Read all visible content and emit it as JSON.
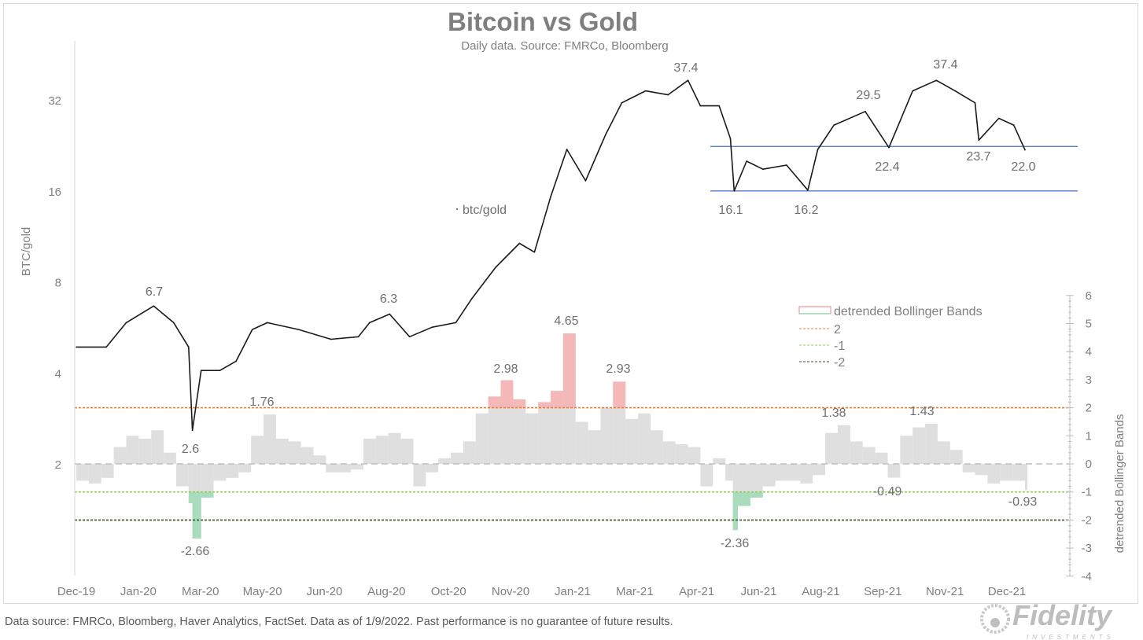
{
  "chart_data": [
    {
      "type": "line",
      "title": "Bitcoin vs Gold",
      "subtitle": "Daily data.  Source: FMRCo, Bloomberg",
      "ylabel": "BTC/gold",
      "yscale": "log2",
      "yticks": [
        2,
        4,
        8,
        16,
        32
      ],
      "ylim": [
        1.6,
        48
      ],
      "xlim": [
        "2019-12-11",
        "2022-01-09"
      ],
      "xtick_labels": [
        "Dec-19",
        "Jan-20",
        "Mar-20",
        "May-20",
        "Jun-20",
        "Aug-20",
        "Oct-20",
        "Nov-20",
        "Jan-21",
        "Mar-21",
        "Apr-21",
        "Jun-21",
        "Aug-21",
        "Sep-21",
        "Nov-21",
        "Dec-21"
      ],
      "series_label": "btc/gold",
      "color": "#1a1a1a",
      "points": [
        [
          "2019-12-11",
          4.9
        ],
        [
          "2020-01-04",
          4.9
        ],
        [
          "2020-01-20",
          5.9
        ],
        [
          "2020-02-11",
          6.7
        ],
        [
          "2020-02-27",
          5.9
        ],
        [
          "2020-03-10",
          4.9
        ],
        [
          "2020-03-13",
          2.6
        ],
        [
          "2020-03-20",
          4.1
        ],
        [
          "2020-04-04",
          4.1
        ],
        [
          "2020-04-17",
          4.4
        ],
        [
          "2020-04-30",
          5.6
        ],
        [
          "2020-05-12",
          5.9
        ],
        [
          "2020-06-06",
          5.6
        ],
        [
          "2020-07-02",
          5.2
        ],
        [
          "2020-07-24",
          5.3
        ],
        [
          "2020-08-02",
          5.9
        ],
        [
          "2020-08-18",
          6.3
        ],
        [
          "2020-09-03",
          5.3
        ],
        [
          "2020-09-21",
          5.7
        ],
        [
          "2020-10-10",
          5.9
        ],
        [
          "2020-10-23",
          7.1
        ],
        [
          "2020-11-11",
          9.0
        ],
        [
          "2020-11-30",
          10.8
        ],
        [
          "2020-12-12",
          10.1
        ],
        [
          "2020-12-25",
          15.4
        ],
        [
          "2021-01-07",
          22.1
        ],
        [
          "2021-01-22",
          17.4
        ],
        [
          "2021-02-07",
          24.7
        ],
        [
          "2021-02-20",
          31.5
        ],
        [
          "2021-03-11",
          34.5
        ],
        [
          "2021-03-29",
          33.5
        ],
        [
          "2021-04-14",
          37.4
        ],
        [
          "2021-04-24",
          30.8
        ],
        [
          "2021-05-09",
          30.8
        ],
        [
          "2021-05-18",
          24.0
        ],
        [
          "2021-05-21",
          16.1
        ],
        [
          "2021-05-31",
          20.2
        ],
        [
          "2021-06-13",
          19.0
        ],
        [
          "2021-07-02",
          19.6
        ],
        [
          "2021-07-19",
          16.2
        ],
        [
          "2021-07-27",
          22.1
        ],
        [
          "2021-08-09",
          26.6
        ],
        [
          "2021-09-03",
          29.5
        ],
        [
          "2021-09-22",
          22.4
        ],
        [
          "2021-10-11",
          34.5
        ],
        [
          "2021-10-30",
          37.4
        ],
        [
          "2021-11-14",
          34.5
        ],
        [
          "2021-11-30",
          31.5
        ],
        [
          "2021-12-03",
          23.7
        ],
        [
          "2021-12-19",
          28.0
        ],
        [
          "2021-12-31",
          26.6
        ],
        [
          "2022-01-09",
          22.0
        ]
      ],
      "annotations": [
        "6.7",
        "2.6",
        "6.3",
        "37.4",
        "16.1",
        "16.2",
        "29.5",
        "37.4",
        "22.4",
        "23.7",
        "22.0"
      ],
      "support_lines": [
        16.1,
        22.6
      ],
      "support_line_color": "#4472c4"
    },
    {
      "type": "bar",
      "ylabel": "detrended Bollinger Bands",
      "ylim": [
        -4,
        6
      ],
      "yticks": [
        -4,
        -3,
        -2,
        -1,
        0,
        1,
        2,
        3,
        4,
        5,
        6
      ],
      "legend": {
        "position": "right",
        "entries": [
          "detrended Bollinger Bands",
          "2",
          "-1",
          "-2"
        ]
      },
      "colors": {
        "bar": "#d9d9d9",
        "above_2": "#f4b8b8",
        "below_minus_1": "#a9dcbc",
        "line_2": "#ed7d31",
        "line_minus_1": "#92d050",
        "line_minus_2": "#375623",
        "zero": "#bfbfbf"
      },
      "reference_lines": [
        2,
        -1,
        -2,
        0
      ],
      "points": [
        [
          "2019-12-11",
          -0.6
        ],
        [
          "2019-12-21",
          -0.7
        ],
        [
          "2019-12-31",
          -0.5
        ],
        [
          "2020-01-10",
          0.6
        ],
        [
          "2020-01-20",
          1.0
        ],
        [
          "2020-01-30",
          0.9
        ],
        [
          "2020-02-09",
          1.2
        ],
        [
          "2020-02-19",
          0.4
        ],
        [
          "2020-02-29",
          -0.8
        ],
        [
          "2020-03-10",
          -1.4
        ],
        [
          "2020-03-13",
          -2.66
        ],
        [
          "2020-03-20",
          -1.2
        ],
        [
          "2020-03-30",
          -0.6
        ],
        [
          "2020-04-09",
          -0.5
        ],
        [
          "2020-04-19",
          -0.3
        ],
        [
          "2020-04-29",
          1.0
        ],
        [
          "2020-05-09",
          1.76
        ],
        [
          "2020-05-19",
          0.9
        ],
        [
          "2020-05-29",
          0.8
        ],
        [
          "2020-06-08",
          0.6
        ],
        [
          "2020-06-18",
          0.3
        ],
        [
          "2020-06-28",
          -0.3
        ],
        [
          "2020-07-08",
          -0.3
        ],
        [
          "2020-07-18",
          -0.2
        ],
        [
          "2020-07-28",
          0.9
        ],
        [
          "2020-08-07",
          1.0
        ],
        [
          "2020-08-17",
          1.1
        ],
        [
          "2020-08-27",
          0.9
        ],
        [
          "2020-09-06",
          -0.8
        ],
        [
          "2020-09-16",
          -0.3
        ],
        [
          "2020-09-26",
          0.2
        ],
        [
          "2020-10-06",
          0.4
        ],
        [
          "2020-10-16",
          0.8
        ],
        [
          "2020-10-26",
          1.8
        ],
        [
          "2020-11-05",
          2.4
        ],
        [
          "2020-11-15",
          2.98
        ],
        [
          "2020-11-25",
          2.3
        ],
        [
          "2020-12-05",
          1.8
        ],
        [
          "2020-12-15",
          2.2
        ],
        [
          "2020-12-25",
          2.6
        ],
        [
          "2021-01-04",
          4.65
        ],
        [
          "2021-01-14",
          1.5
        ],
        [
          "2021-01-24",
          1.2
        ],
        [
          "2021-02-03",
          2.0
        ],
        [
          "2021-02-13",
          2.93
        ],
        [
          "2021-02-23",
          1.6
        ],
        [
          "2021-03-05",
          1.8
        ],
        [
          "2021-03-15",
          1.2
        ],
        [
          "2021-03-25",
          0.8
        ],
        [
          "2021-04-04",
          0.7
        ],
        [
          "2021-04-14",
          0.6
        ],
        [
          "2021-04-24",
          -0.8
        ],
        [
          "2021-05-04",
          0.2
        ],
        [
          "2021-05-14",
          -0.6
        ],
        [
          "2021-05-20",
          -2.36
        ],
        [
          "2021-05-24",
          -1.5
        ],
        [
          "2021-06-03",
          -1.2
        ],
        [
          "2021-06-13",
          -0.8
        ],
        [
          "2021-06-23",
          -0.6
        ],
        [
          "2021-07-03",
          -0.6
        ],
        [
          "2021-07-13",
          -0.7
        ],
        [
          "2021-07-23",
          -0.4
        ],
        [
          "2021-08-02",
          1.1
        ],
        [
          "2021-08-12",
          1.38
        ],
        [
          "2021-08-22",
          0.8
        ],
        [
          "2021-09-01",
          0.6
        ],
        [
          "2021-09-11",
          0.4
        ],
        [
          "2021-09-21",
          -0.49
        ],
        [
          "2021-10-01",
          1.0
        ],
        [
          "2021-10-11",
          1.3
        ],
        [
          "2021-10-21",
          1.43
        ],
        [
          "2021-10-31",
          0.8
        ],
        [
          "2021-11-10",
          0.5
        ],
        [
          "2021-11-20",
          -0.3
        ],
        [
          "2021-11-30",
          -0.4
        ],
        [
          "2021-12-10",
          -0.7
        ],
        [
          "2021-12-20",
          -0.6
        ],
        [
          "2021-12-30",
          -0.6
        ],
        [
          "2022-01-09",
          -0.93
        ]
      ],
      "annotations": [
        "1.76",
        "-2.66",
        "2.98",
        "4.65",
        "2.93",
        "-2.36",
        "1.38",
        "-0.49",
        "1.43",
        "-0.93"
      ]
    }
  ],
  "footer": "Data source: FMRCo, Bloomberg, Haver Analytics, FactSet. Data as of 1/9/2022. Past performance is no guarantee of future results.",
  "logo": {
    "text": "Fidelity",
    "subtext": "INVESTMENTS"
  }
}
